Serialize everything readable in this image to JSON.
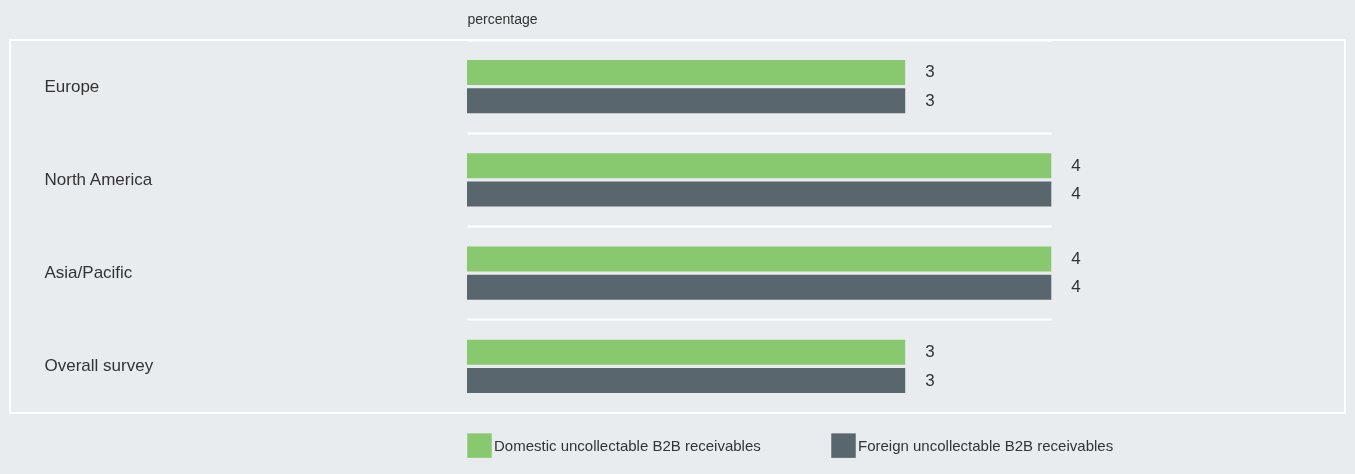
{
  "chart_data": {
    "type": "bar",
    "orientation": "horizontal",
    "xlabel": "percentage",
    "categories": [
      "Europe",
      "North America",
      "Asia/Pacific",
      "Overall survey"
    ],
    "series": [
      {
        "name": "Domestic uncollectable B2B receivables",
        "color": "#88c96f",
        "values": [
          3,
          4,
          4,
          3
        ]
      },
      {
        "name": "Foreign uncollectable B2B receivables",
        "color": "#5a666e",
        "values": [
          3,
          4,
          4,
          3
        ]
      }
    ],
    "data_labels": true,
    "legend": "bottom",
    "tick_labels": "y"
  }
}
